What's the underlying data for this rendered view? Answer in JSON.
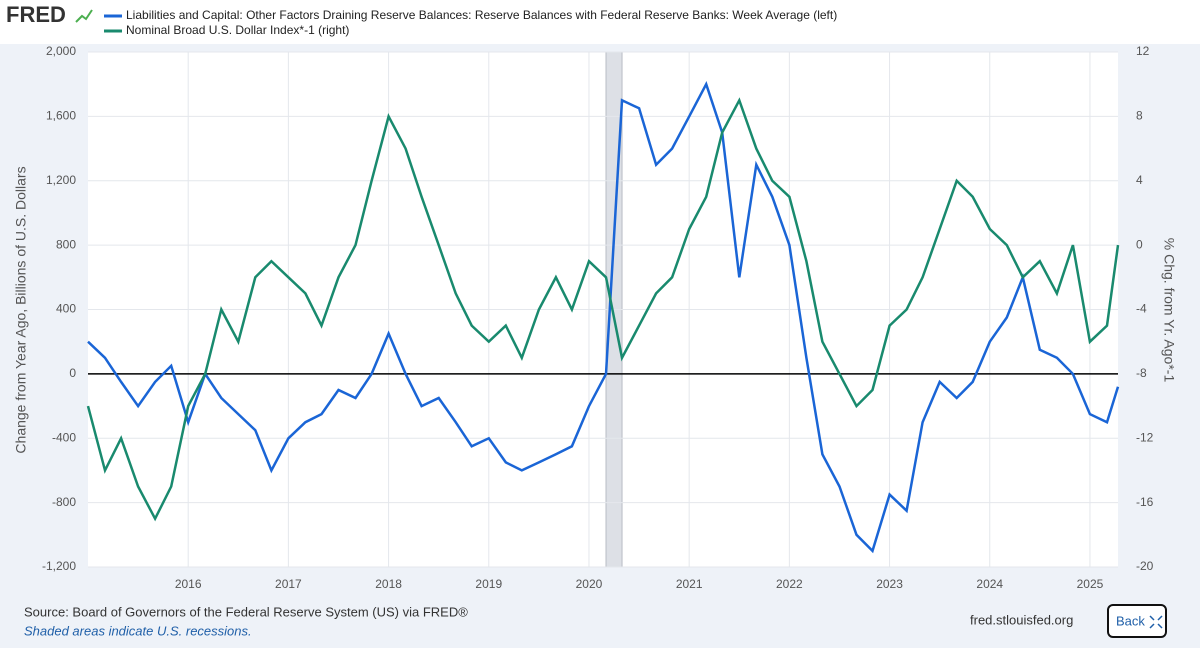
{
  "logo": "FRED",
  "chart_data": {
    "type": "line",
    "x": [
      2015.0,
      2015.17,
      2015.33,
      2015.5,
      2015.67,
      2015.83,
      2016.0,
      2016.17,
      2016.33,
      2016.5,
      2016.67,
      2016.83,
      2017.0,
      2017.17,
      2017.33,
      2017.5,
      2017.67,
      2017.83,
      2018.0,
      2018.17,
      2018.33,
      2018.5,
      2018.67,
      2018.83,
      2019.0,
      2019.17,
      2019.33,
      2019.5,
      2019.67,
      2019.83,
      2020.0,
      2020.17,
      2020.33,
      2020.5,
      2020.67,
      2020.83,
      2021.0,
      2021.17,
      2021.33,
      2021.5,
      2021.67,
      2021.83,
      2022.0,
      2022.17,
      2022.33,
      2022.5,
      2022.67,
      2022.83,
      2023.0,
      2023.17,
      2023.33,
      2023.5,
      2023.67,
      2023.83,
      2024.0,
      2024.17,
      2024.33,
      2024.5,
      2024.67,
      2024.83,
      2025.0,
      2025.17,
      2025.28
    ],
    "series": [
      {
        "name": "Liabilities and Capital: Other Factors Draining Reserve Balances: Reserve Balances with Federal Reserve Banks: Week Average (left)",
        "color": "#1a65d6",
        "axis": "y",
        "values": [
          200,
          100,
          -50,
          -200,
          -50,
          50,
          -300,
          0,
          -150,
          -250,
          -350,
          -600,
          -400,
          -300,
          -250,
          -100,
          -150,
          0,
          250,
          0,
          -200,
          -150,
          -300,
          -450,
          -400,
          -550,
          -600,
          -550,
          -500,
          -450,
          -200,
          0,
          1700,
          1650,
          1300,
          1400,
          1600,
          1800,
          1500,
          600,
          1300,
          1100,
          800,
          100,
          -500,
          -700,
          -1000,
          -1100,
          -750,
          -850,
          -300,
          -50,
          -150,
          -50,
          200,
          350,
          600,
          150,
          100,
          0,
          -250,
          -300,
          -80
        ]
      },
      {
        "name": "Nominal Broad U.S. Dollar Index*-1 (right)",
        "color": "#198a6e",
        "axis": "y2",
        "values": [
          -10,
          -14,
          -12,
          -15,
          -17,
          -15,
          -10,
          -8,
          -4,
          -6,
          -2,
          -1,
          -2,
          -3,
          -5,
          -2,
          0,
          4,
          8,
          6,
          3,
          0,
          -3,
          -5,
          -6,
          -5,
          -7,
          -4,
          -2,
          -4,
          -1,
          -2,
          -7,
          -5,
          -3,
          -2,
          1,
          3,
          7,
          9,
          6,
          4,
          3,
          -1,
          -6,
          -8,
          -10,
          -9,
          -5,
          -4,
          -2,
          1,
          4,
          3,
          1,
          0,
          -2,
          -1,
          -3,
          0,
          -6,
          -5,
          0
        ]
      }
    ],
    "recessions": [
      [
        2020.17,
        2020.33
      ]
    ],
    "xlim": [
      2015.0,
      2025.28
    ],
    "xticks": [
      2016,
      2017,
      2018,
      2019,
      2020,
      2021,
      2022,
      2023,
      2024,
      2025
    ],
    "ylim": [
      -1200,
      2000
    ],
    "yticks": [
      {
        "value": -1200,
        "label": "-1,200"
      },
      -800,
      -400,
      0,
      400,
      800,
      {
        "value": 1200,
        "label": "1,200"
      },
      {
        "value": 1600,
        "label": "1,600"
      },
      {
        "value": 2000,
        "label": "2,000"
      }
    ],
    "y2lim": [
      -20,
      12
    ],
    "y2ticks": [
      -20,
      -16,
      -12,
      -8,
      -4,
      0,
      4,
      8,
      12
    ],
    "ylabel": "Change from Year Ago, Billions of U.S. Dollars",
    "y2label": "% Chg. from Yr. Ago*-1",
    "grid": true,
    "zero_line": 0,
    "source": "Source: Board of Governors of the Federal Reserve System (US) via FRED®",
    "note": "Shaded areas indicate U.S. recessions.",
    "site": "fred.stlouisfed.org",
    "button": "Back"
  }
}
